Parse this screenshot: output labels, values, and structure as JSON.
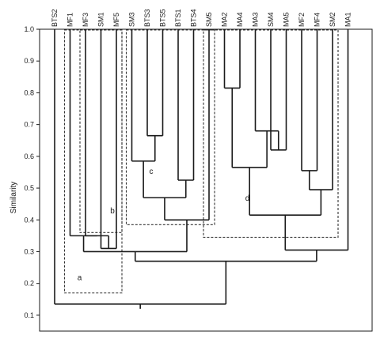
{
  "chart_data": {
    "type": "dendrogram",
    "ylabel": "Similarity",
    "ylim": [
      0.05,
      1.0
    ],
    "yticks": [
      "1.0",
      "0.9",
      "0.8",
      "0.7",
      "0.6",
      "0.5",
      "0.4",
      "0.3",
      "0.2",
      "0.1"
    ],
    "leaves": [
      "BTS2",
      "MF1",
      "MF3",
      "SM1",
      "MF5",
      "SM3",
      "BTS3",
      "BTS5",
      "BTS1",
      "BTS4",
      "SM5",
      "MA2",
      "MA4",
      "MA3",
      "SM4",
      "MA5",
      "MF2",
      "MF4",
      "SM2",
      "MA1"
    ],
    "merges": [
      {
        "a": "SM1",
        "b": "MF5",
        "similarity": 0.31
      },
      {
        "a": "MF3",
        "b": "SM1+MF5",
        "similarity": 0.35
      },
      {
        "a": "MF1",
        "b": "MF3+SM1+MF5",
        "similarity": 0.35
      },
      {
        "a": "BTS3",
        "b": "BTS5",
        "similarity": 0.665
      },
      {
        "a": "SM3",
        "b": "BTS3+BTS5",
        "similarity": 0.585
      },
      {
        "a": "BTS1",
        "b": "BTS4",
        "similarity": 0.525
      },
      {
        "a": "SM3+BTS3+BTS5",
        "b": "BTS1+BTS4",
        "similarity": 0.47
      },
      {
        "a": "SM3+BTS3+BTS5+BTS1+BTS4",
        "b": "SM5",
        "similarity": 0.4
      },
      {
        "a": "MF1+MF3+SM1+MF5",
        "b": "SM3+BTS3+BTS5+BTS1+BTS4+SM5",
        "similarity": 0.3
      },
      {
        "a": "MA2",
        "b": "MA4",
        "similarity": 0.815
      },
      {
        "a": "SM4",
        "b": "MA5",
        "similarity": 0.62
      },
      {
        "a": "MA3",
        "b": "SM4+MA5",
        "similarity": 0.68
      },
      {
        "a": "MA2+MA4",
        "b": "MA3+SM4+MA5",
        "similarity": 0.565
      },
      {
        "a": "MF2",
        "b": "MF4",
        "similarity": 0.555
      },
      {
        "a": "MF2+MF4",
        "b": "SM2",
        "similarity": 0.495
      },
      {
        "a": "MA2+MA4+MA3+SM4+MA5",
        "b": "MF2+MF4+SM2",
        "similarity": 0.415
      },
      {
        "a": "MA2+MA4+MA3+SM4+MA5+MF2+MF4+SM2",
        "b": "MA1",
        "similarity": 0.305
      },
      {
        "a": "MF1+MF3+SM1+MF5+SM3+BTS3+BTS5+BTS1+BTS4+SM5",
        "b": "MA2+MA4+MA3+SM4+MA5+MF2+MF4+SM2+MA1",
        "similarity": 0.27
      },
      {
        "a": "BTS2",
        "b": "ALL-OTHERS",
        "similarity": 0.135
      }
    ],
    "groups": [
      {
        "label": "a",
        "members": [
          "MF1",
          "MF3",
          "SM1",
          "MF5"
        ],
        "lower_similarity": 0.17
      },
      {
        "label": "b",
        "members": [
          "MF3",
          "SM1",
          "MF5"
        ],
        "lower_similarity": 0.36
      },
      {
        "label": "c",
        "members": [
          "SM3",
          "BTS3",
          "BTS5",
          "BTS1",
          "BTS4",
          "SM5"
        ],
        "lower_similarity": 0.385
      },
      {
        "label": "d",
        "members": [
          "SM5",
          "MA2",
          "MA4",
          "MA3",
          "SM4",
          "MA5",
          "MF2",
          "MF4",
          "SM2"
        ],
        "lower_similarity": 0.345
      }
    ]
  }
}
